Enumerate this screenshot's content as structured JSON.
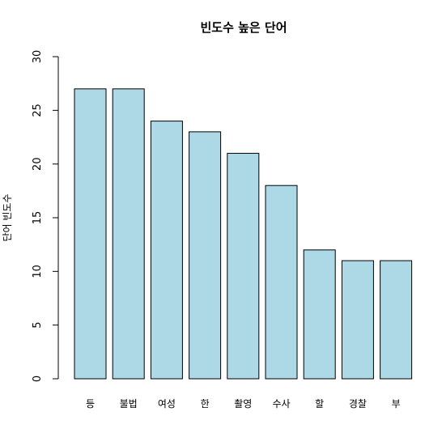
{
  "chart_data": {
    "type": "bar",
    "title": "빈도수 높은 단어",
    "xlabel": "",
    "ylabel": "단어 빈도수",
    "categories": [
      "등",
      "불법",
      "여성",
      "한",
      "촬영",
      "수사",
      "할",
      "경찰",
      "부"
    ],
    "values": [
      27,
      27,
      24,
      23,
      21,
      18,
      12,
      11,
      11
    ],
    "ylim": [
      0,
      30
    ],
    "yticks": [
      0,
      5,
      10,
      15,
      20,
      25,
      30
    ],
    "bar_color": "#add8e6",
    "grid": false,
    "legend": "none"
  }
}
